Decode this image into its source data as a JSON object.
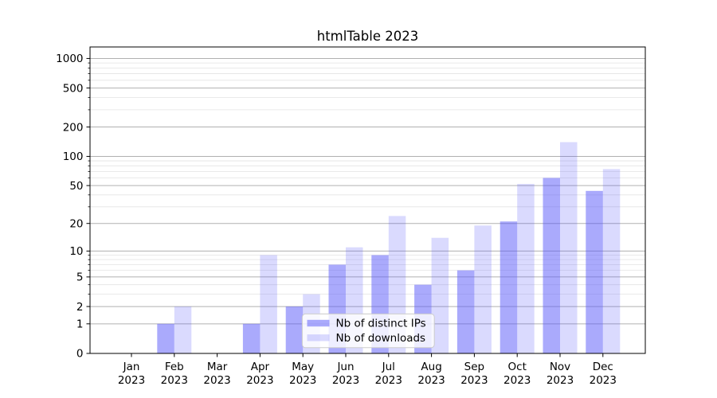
{
  "figure": {
    "background": "#ffffff"
  },
  "chart_data": {
    "type": "bar",
    "title": "htmlTable 2023",
    "categories": [
      "Jan 2023",
      "Feb 2023",
      "Mar 2023",
      "Apr 2023",
      "May 2023",
      "Jun 2023",
      "Jul 2023",
      "Aug 2023",
      "Sep 2023",
      "Oct 2023",
      "Nov 2023",
      "Dec 2023"
    ],
    "series": [
      {
        "name": "Nb of distinct IPs",
        "color": "rgba(85,85,250,0.5)",
        "values": [
          0,
          1,
          0,
          1,
          2,
          7,
          9,
          4,
          6,
          21,
          60,
          44
        ]
      },
      {
        "name": "Nb of downloads",
        "color": "rgba(85,85,250,0.22)",
        "values": [
          0,
          2,
          0,
          9,
          3,
          11,
          24,
          14,
          19,
          52,
          140,
          74
        ]
      }
    ],
    "xlabel": "",
    "ylabel": "",
    "yscale": "log1p",
    "ylim": [
      0,
      1300
    ],
    "yticks": [
      0,
      1,
      2,
      5,
      10,
      20,
      50,
      100,
      200,
      500,
      1000
    ],
    "minor_gridlines": [
      3,
      4,
      6,
      7,
      8,
      9,
      30,
      40,
      60,
      70,
      80,
      90,
      300,
      400,
      600,
      700,
      800,
      900
    ],
    "grid": true,
    "legend_position": "lower-center"
  },
  "style": {
    "bar_dark": "rgba(85,85,250,0.5)",
    "bar_light": "rgba(85,85,250,0.22)",
    "grid_major_color": "#b0b0b0",
    "grid_minor_color": "rgba(176,176,176,0.35)",
    "axis_color": "#000000",
    "text_color": "#000000",
    "legend_bg": "rgba(255,255,255,0.8)",
    "legend_border": "#cccccc"
  }
}
